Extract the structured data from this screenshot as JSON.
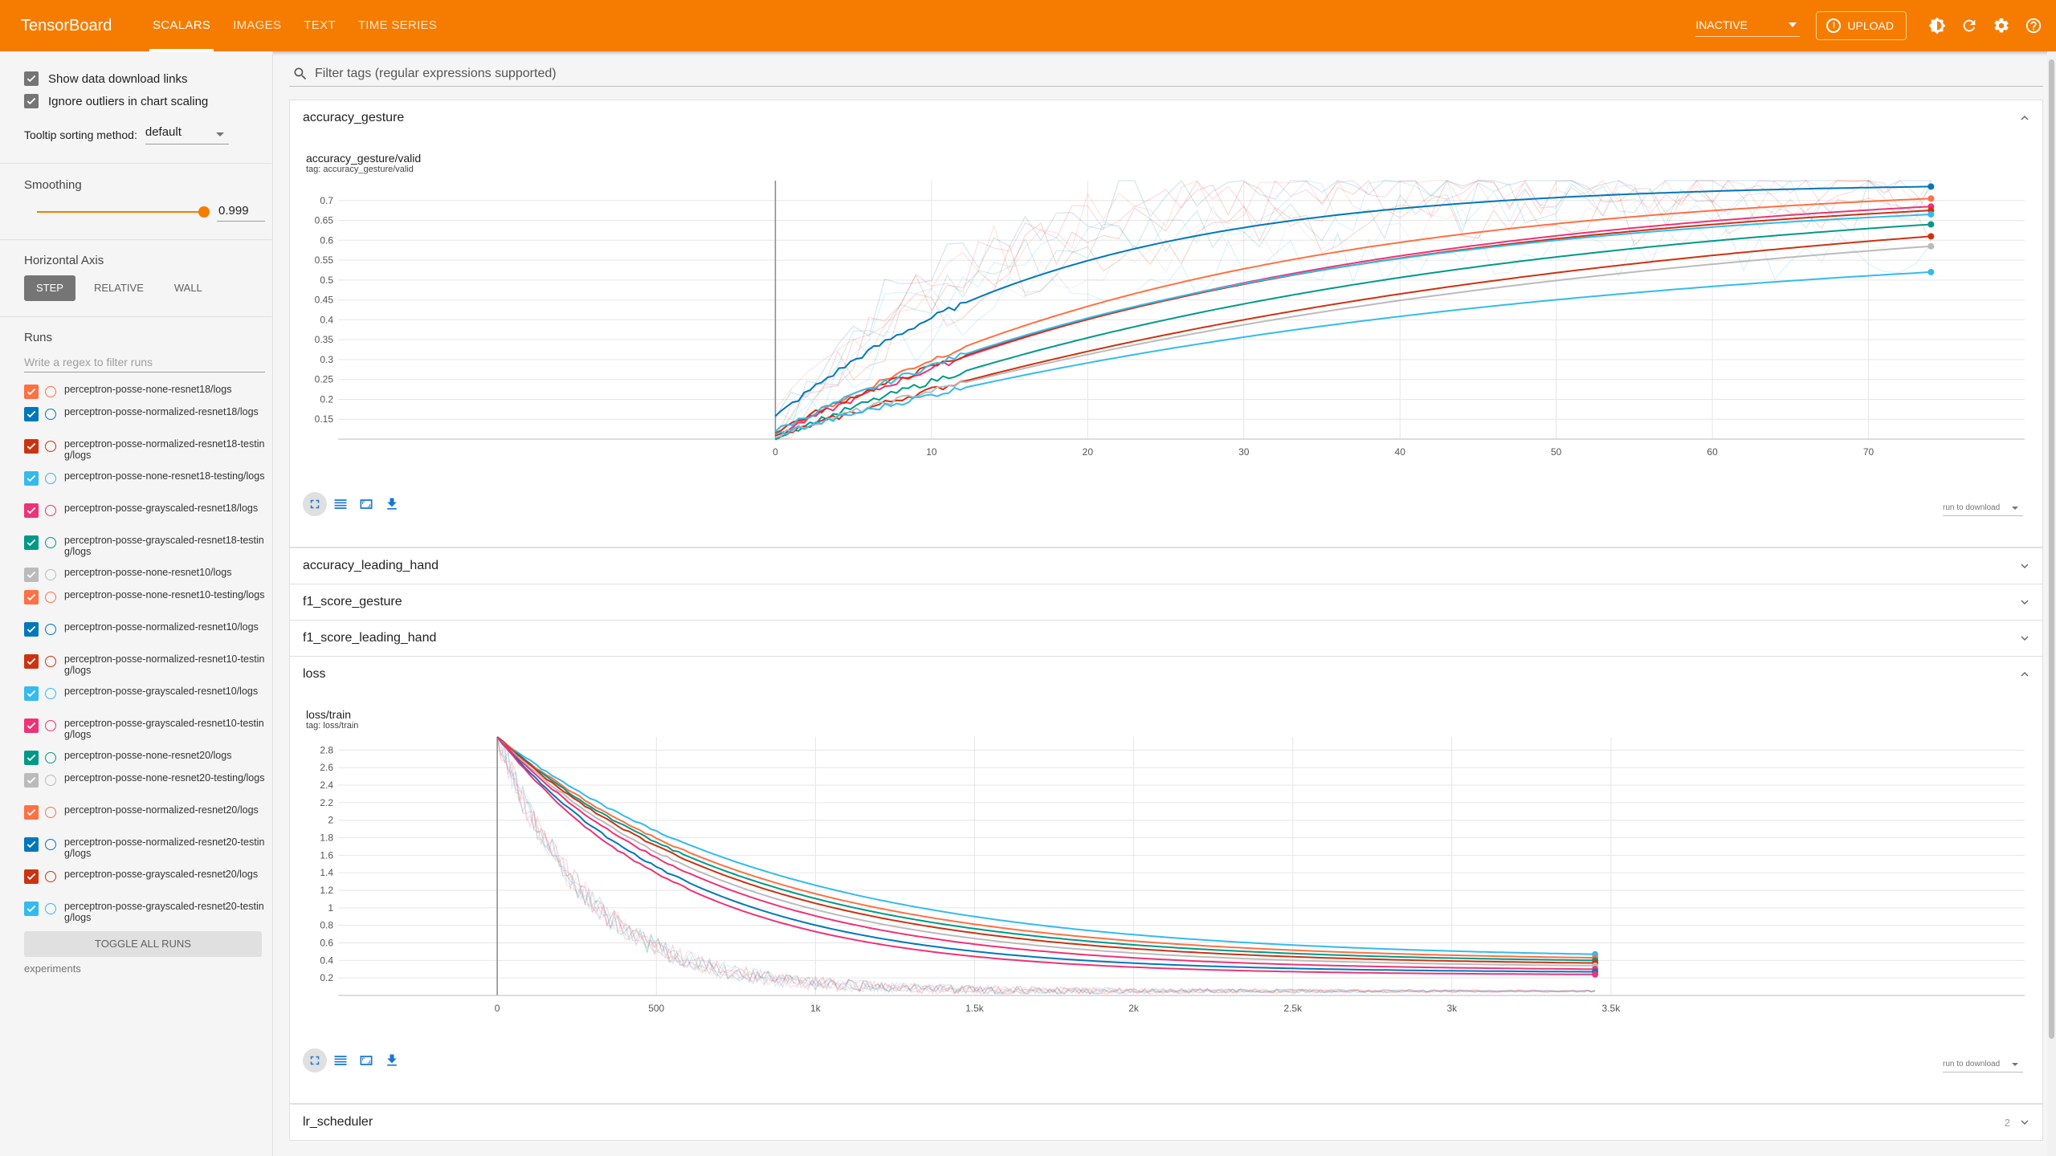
{
  "app": {
    "brand": "TensorBoard",
    "tabs": [
      {
        "label": "SCALARS",
        "active": true
      },
      {
        "label": "IMAGES",
        "active": false
      },
      {
        "label": "TEXT",
        "active": false
      },
      {
        "label": "TIME SERIES",
        "active": false
      }
    ],
    "state_selector": "INACTIVE",
    "upload_label": "UPLOAD",
    "icons": [
      "brightness-icon",
      "refresh-icon",
      "settings-icon",
      "help-icon"
    ]
  },
  "sidebar": {
    "show_download_links": {
      "label": "Show data download links",
      "checked": true
    },
    "ignore_outliers": {
      "label": "Ignore outliers in chart scaling",
      "checked": true
    },
    "tooltip_sort_label": "Tooltip sorting method:",
    "tooltip_sort_value": "default",
    "smoothing_label": "Smoothing",
    "smoothing_value": "0.999",
    "smoothing_fraction": 0.999,
    "horizontal_axis_label": "Horizontal Axis",
    "axis_options": [
      {
        "label": "STEP",
        "active": true
      },
      {
        "label": "RELATIVE",
        "active": false
      },
      {
        "label": "WALL",
        "active": false
      }
    ],
    "runs_label": "Runs",
    "runs_filter_placeholder": "Write a regex to filter runs",
    "runs": [
      {
        "name": "perceptron-posse-none-resnet18/logs",
        "color": "#ff7043"
      },
      {
        "name": "perceptron-posse-normalized-resnet18/logs",
        "color": "#0077bb"
      },
      {
        "name": "perceptron-posse-normalized-resnet18-testing/logs",
        "color": "#cc3311"
      },
      {
        "name": "perceptron-posse-none-resnet18-testing/logs",
        "color": "#33bbee"
      },
      {
        "name": "perceptron-posse-grayscaled-resnet18/logs",
        "color": "#ee3377"
      },
      {
        "name": "perceptron-posse-grayscaled-resnet18-testing/logs",
        "color": "#009988"
      },
      {
        "name": "perceptron-posse-none-resnet10/logs",
        "color": "#bbbbbb"
      },
      {
        "name": "perceptron-posse-none-resnet10-testing/logs",
        "color": "#ff7043"
      },
      {
        "name": "perceptron-posse-normalized-resnet10/logs",
        "color": "#0077bb"
      },
      {
        "name": "perceptron-posse-normalized-resnet10-testing/logs",
        "color": "#cc3311"
      },
      {
        "name": "perceptron-posse-grayscaled-resnet10/logs",
        "color": "#33bbee"
      },
      {
        "name": "perceptron-posse-grayscaled-resnet10-testing/logs",
        "color": "#ee3377"
      },
      {
        "name": "perceptron-posse-none-resnet20/logs",
        "color": "#009988"
      },
      {
        "name": "perceptron-posse-none-resnet20-testing/logs",
        "color": "#bbbbbb"
      },
      {
        "name": "perceptron-posse-normalized-resnet20/logs",
        "color": "#ff7043"
      },
      {
        "name": "perceptron-posse-normalized-resnet20-testing/logs",
        "color": "#0077bb"
      },
      {
        "name": "perceptron-posse-grayscaled-resnet20/logs",
        "color": "#cc3311"
      },
      {
        "name": "perceptron-posse-grayscaled-resnet20-testing/logs",
        "color": "#33bbee"
      }
    ],
    "toggle_all_label": "TOGGLE ALL RUNS",
    "experiments_label": "experiments"
  },
  "main": {
    "filter_placeholder": "Filter tags (regular expressions supported)",
    "download_select": "run to download",
    "sections": [
      {
        "title": "accuracy_gesture",
        "expanded": true
      },
      {
        "title": "accuracy_leading_hand",
        "expanded": false
      },
      {
        "title": "f1_score_gesture",
        "expanded": false
      },
      {
        "title": "f1_score_leading_hand",
        "expanded": false
      },
      {
        "title": "loss",
        "expanded": true
      },
      {
        "title": "lr_scheduler",
        "expanded": false,
        "count": "2"
      }
    ]
  },
  "chart_data": [
    {
      "type": "line",
      "title": "accuracy_gesture/valid",
      "subtitle": "tag: accuracy_gesture/valid",
      "xlim": [
        -28,
        80
      ],
      "ylim": [
        0.1,
        0.75
      ],
      "x_ticks": [
        0,
        10,
        20,
        30,
        40,
        50,
        60,
        70
      ],
      "y_ticks": [
        0.15,
        0.2,
        0.25,
        0.3,
        0.35,
        0.4,
        0.45,
        0.5,
        0.55,
        0.6,
        0.65,
        0.7
      ],
      "y_tick_labels": [
        "0.15",
        "0.2",
        "0.25",
        "0.3",
        "0.35",
        "0.4",
        "0.45",
        "0.5",
        "0.55",
        "0.6",
        "0.65",
        "0.7"
      ],
      "x_max_step": 74,
      "series": [
        {
          "color": "#0077bb",
          "start": 0.155,
          "end": 0.735,
          "k": 0.055
        },
        {
          "color": "#ff7043",
          "start": 0.11,
          "end": 0.705,
          "k": 0.035
        },
        {
          "color": "#ee3377",
          "start": 0.11,
          "end": 0.685,
          "k": 0.03
        },
        {
          "color": "#cc3311",
          "start": 0.12,
          "end": 0.675,
          "k": 0.03
        },
        {
          "color": "#33bbee",
          "start": 0.12,
          "end": 0.665,
          "k": 0.032
        },
        {
          "color": "#009988",
          "start": 0.105,
          "end": 0.64,
          "k": 0.025
        },
        {
          "color": "#cc3311",
          "start": 0.105,
          "end": 0.61,
          "k": 0.02
        },
        {
          "color": "#bbbbbb",
          "start": 0.11,
          "end": 0.585,
          "k": 0.02
        },
        {
          "color": "#33bbee",
          "start": 0.11,
          "end": 0.52,
          "k": 0.022
        }
      ]
    },
    {
      "type": "line",
      "title": "loss/train",
      "subtitle": "tag: loss/train",
      "xlim": [
        -500,
        4800
      ],
      "ylim": [
        0,
        2.95
      ],
      "x_ticks": [
        0,
        500,
        1000,
        1500,
        2000,
        2500,
        3000,
        3500
      ],
      "x_tick_labels": [
        "0",
        "500",
        "1k",
        "1.5k",
        "2k",
        "2.5k",
        "3k",
        "3.5k"
      ],
      "y_ticks": [
        0.2,
        0.4,
        0.6,
        0.8,
        1,
        1.2,
        1.4,
        1.6,
        1.8,
        2,
        2.2,
        2.4,
        2.6,
        2.8
      ],
      "y_tick_labels": [
        "0.2",
        "0.4",
        "0.6",
        "0.8",
        "1",
        "1.2",
        "1.4",
        "1.6",
        "1.8",
        "2",
        "2.2",
        "2.4",
        "2.6",
        "2.8"
      ],
      "x_max_step": 3450,
      "series": [
        {
          "color": "#33bbee",
          "end": 0.47,
          "k": 0.0011
        },
        {
          "color": "#ff7043",
          "end": 0.43,
          "k": 0.0012
        },
        {
          "color": "#009988",
          "end": 0.4,
          "k": 0.00125
        },
        {
          "color": "#cc3311",
          "end": 0.37,
          "k": 0.0013
        },
        {
          "color": "#bbbbbb",
          "end": 0.34,
          "k": 0.00138
        },
        {
          "color": "#ee3377",
          "end": 0.3,
          "k": 0.00145
        },
        {
          "color": "#0077bb",
          "end": 0.27,
          "k": 0.0016
        },
        {
          "color": "#ee3377",
          "end": 0.24,
          "k": 0.0017
        }
      ]
    }
  ]
}
